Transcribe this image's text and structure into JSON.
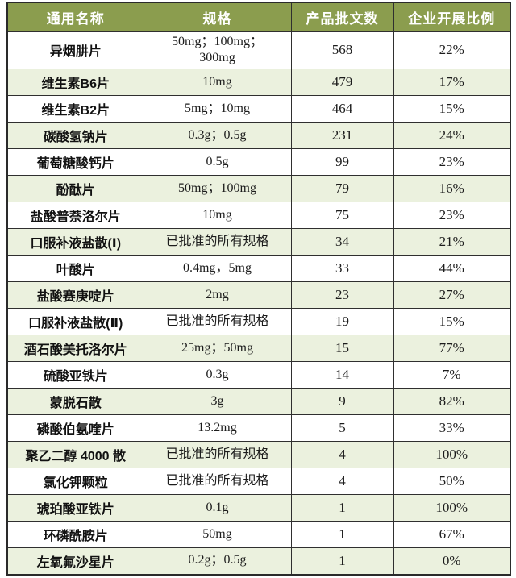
{
  "chart_data": {
    "type": "table",
    "columns": [
      "通用名称",
      "规格",
      "产品批文数",
      "企业开展比例"
    ],
    "rows": [
      {
        "name": "异烟肼片",
        "spec": "50mg；100mg；\n300mg",
        "approvals": "568",
        "ratio": "22%"
      },
      {
        "name": "维生素B6片",
        "spec": "10mg",
        "approvals": "479",
        "ratio": "17%"
      },
      {
        "name": "维生素B2片",
        "spec": "5mg；10mg",
        "approvals": "464",
        "ratio": "15%"
      },
      {
        "name": "碳酸氢钠片",
        "spec": "0.3g；0.5g",
        "approvals": "231",
        "ratio": "24%"
      },
      {
        "name": "葡萄糖酸钙片",
        "spec": "0.5g",
        "approvals": "99",
        "ratio": "23%"
      },
      {
        "name": "酚酞片",
        "spec": "50mg；100mg",
        "approvals": "79",
        "ratio": "16%"
      },
      {
        "name": "盐酸普萘洛尔片",
        "spec": "10mg",
        "approvals": "75",
        "ratio": "23%"
      },
      {
        "name": "口服补液盐散(Ⅰ)",
        "spec": "已批准的所有规格",
        "approvals": "34",
        "ratio": "21%"
      },
      {
        "name": "叶酸片",
        "spec": "0.4mg，5mg",
        "approvals": "33",
        "ratio": "44%"
      },
      {
        "name": "盐酸赛庚啶片",
        "spec": "2mg",
        "approvals": "23",
        "ratio": "27%"
      },
      {
        "name": "口服补液盐散(Ⅱ)",
        "spec": "已批准的所有规格",
        "approvals": "19",
        "ratio": "15%"
      },
      {
        "name": "酒石酸美托洛尔片",
        "spec": "25mg；50mg",
        "approvals": "15",
        "ratio": "77%"
      },
      {
        "name": "硫酸亚铁片",
        "spec": "0.3g",
        "approvals": "14",
        "ratio": "7%"
      },
      {
        "name": "蒙脱石散",
        "spec": "3g",
        "approvals": "9",
        "ratio": "82%"
      },
      {
        "name": "磷酸伯氨喹片",
        "spec": "13.2mg",
        "approvals": "5",
        "ratio": "33%"
      },
      {
        "name": "聚乙二醇 4000 散",
        "spec": "已批准的所有规格",
        "approvals": "4",
        "ratio": "100%"
      },
      {
        "name": "氯化钾颗粒",
        "spec": "已批准的所有规格",
        "approvals": "4",
        "ratio": "50%"
      },
      {
        "name": "琥珀酸亚铁片",
        "spec": "0.1g",
        "approvals": "1",
        "ratio": "100%"
      },
      {
        "name": "环磷酰胺片",
        "spec": "50mg",
        "approvals": "1",
        "ratio": "67%"
      },
      {
        "name": "左氧氟沙星片",
        "spec": "0.2g；0.5g",
        "approvals": "1",
        "ratio": "0%"
      }
    ]
  },
  "colors": {
    "header_bg": "#8b9d4e",
    "header_text": "#ffffff",
    "row_alt_bg": "#ebf1de",
    "row_bg": "#ffffff",
    "border": "#2a2a2a",
    "text": "#1c1c1c"
  }
}
